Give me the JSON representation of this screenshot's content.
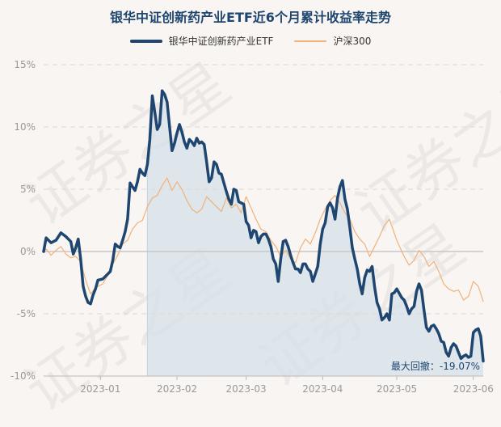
{
  "title": "银华中证创新药产业ETF近6个月累计收益率走势",
  "watermark": "证券之星",
  "legend": [
    {
      "name": "银华中证创新药产业ETF",
      "color": "#1e4670"
    },
    {
      "name": "沪深300",
      "color": "#f0b27a"
    }
  ],
  "annotation": "最大回撤：-19.07%",
  "chart_data": {
    "type": "line",
    "title": "银华中证创新药产业ETF近6个月累计收益率走势",
    "xlabel": "",
    "ylabel": "",
    "ylim": [
      -10,
      15
    ],
    "y_ticks": [
      "15%",
      "10%",
      "5%",
      "0%",
      "-5%",
      "-10%"
    ],
    "y_tick_values": [
      15,
      10,
      5,
      0,
      -5,
      -10
    ],
    "x_range": [
      "2022-12-09",
      "2023-06-05"
    ],
    "x_ticks": [
      "2023-01",
      "2023-02",
      "2023-03",
      "2023-04",
      "2023-05",
      "2023-06"
    ],
    "x_tick_dates": [
      "2023-01-01",
      "2023-02-01",
      "2023-03-01",
      "2023-04-01",
      "2023-05-01",
      "2023-06-01"
    ],
    "grid": "horizontal-dashed",
    "legend_position": "top-center",
    "drawdown_shade": [
      "2023-01-20",
      "2023-06-05"
    ],
    "series": [
      {
        "name": "银华中证创新药产业ETF",
        "color": "#1e4670",
        "points": [
          [
            "2022-12-09",
            0
          ],
          [
            "2022-12-10",
            1.1
          ],
          [
            "2022-12-12",
            0.7
          ],
          [
            "2022-12-14",
            0.9
          ],
          [
            "2022-12-16",
            1.5
          ],
          [
            "2022-12-18",
            1.2
          ],
          [
            "2022-12-20",
            0.8
          ],
          [
            "2022-12-21",
            -0.2
          ],
          [
            "2022-12-22",
            0.3
          ],
          [
            "2022-12-23",
            1.0
          ],
          [
            "2022-12-24",
            -0.6
          ],
          [
            "2022-12-25",
            -2.8
          ],
          [
            "2022-12-26",
            -3.6
          ],
          [
            "2022-12-27",
            -4.1
          ],
          [
            "2022-12-28",
            -4.2
          ],
          [
            "2022-12-29",
            -3.5
          ],
          [
            "2022-12-30",
            -3.0
          ],
          [
            "2022-12-31",
            -2.3
          ],
          [
            "2023-01-02",
            -2.2
          ],
          [
            "2023-01-04",
            -1.8
          ],
          [
            "2023-01-05",
            -1.6
          ],
          [
            "2023-01-06",
            -0.7
          ],
          [
            "2023-01-07",
            0.6
          ],
          [
            "2023-01-08",
            0.4
          ],
          [
            "2023-01-09",
            0.3
          ],
          [
            "2023-01-10",
            0.9
          ],
          [
            "2023-01-11",
            1.6
          ],
          [
            "2023-01-12",
            2.6
          ],
          [
            "2023-01-13",
            5.5
          ],
          [
            "2023-01-14",
            5.2
          ],
          [
            "2023-01-15",
            4.9
          ],
          [
            "2023-01-16",
            5.6
          ],
          [
            "2023-01-17",
            6.6
          ],
          [
            "2023-01-18",
            6.3
          ],
          [
            "2023-01-19",
            6.1
          ],
          [
            "2023-01-20",
            7.0
          ],
          [
            "2023-01-21",
            9.0
          ],
          [
            "2023-01-22",
            12.5
          ],
          [
            "2023-01-23",
            11.2
          ],
          [
            "2023-01-24",
            9.8
          ],
          [
            "2023-01-25",
            10.2
          ],
          [
            "2023-01-26",
            12.9
          ],
          [
            "2023-01-27",
            12.6
          ],
          [
            "2023-01-28",
            12.0
          ],
          [
            "2023-01-29",
            10.0
          ],
          [
            "2023-01-30",
            8.1
          ],
          [
            "2023-01-31",
            8.7
          ],
          [
            "2023-02-01",
            9.5
          ],
          [
            "2023-02-02",
            10.2
          ],
          [
            "2023-02-03",
            9.6
          ],
          [
            "2023-02-04",
            8.8
          ],
          [
            "2023-02-05",
            8.3
          ],
          [
            "2023-02-06",
            9.0
          ],
          [
            "2023-02-07",
            8.8
          ],
          [
            "2023-02-08",
            8.5
          ],
          [
            "2023-02-09",
            9.1
          ],
          [
            "2023-02-10",
            8.7
          ],
          [
            "2023-02-11",
            8.8
          ],
          [
            "2023-02-12",
            8.6
          ],
          [
            "2023-02-13",
            7.2
          ],
          [
            "2023-02-14",
            5.6
          ],
          [
            "2023-02-15",
            5.9
          ],
          [
            "2023-02-16",
            7.2
          ],
          [
            "2023-02-17",
            7.0
          ],
          [
            "2023-02-18",
            6.3
          ],
          [
            "2023-02-19",
            6.2
          ],
          [
            "2023-02-20",
            5.5
          ],
          [
            "2023-02-21",
            4.8
          ],
          [
            "2023-02-22",
            4.2
          ],
          [
            "2023-02-23",
            3.8
          ],
          [
            "2023-02-24",
            5.0
          ],
          [
            "2023-02-25",
            4.9
          ],
          [
            "2023-02-26",
            4.0
          ],
          [
            "2023-02-27",
            3.9
          ],
          [
            "2023-02-28",
            3.8
          ],
          [
            "2023-03-01",
            2.4
          ],
          [
            "2023-03-02",
            2.1
          ],
          [
            "2023-03-03",
            1.1
          ],
          [
            "2023-03-04",
            1.7
          ],
          [
            "2023-03-05",
            1.6
          ],
          [
            "2023-03-06",
            0.7
          ],
          [
            "2023-03-07",
            1.2
          ],
          [
            "2023-03-08",
            1.4
          ],
          [
            "2023-03-09",
            1.4
          ],
          [
            "2023-03-10",
            1.0
          ],
          [
            "2023-03-11",
            0.4
          ],
          [
            "2023-03-12",
            -0.6
          ],
          [
            "2023-03-13",
            -1.0
          ],
          [
            "2023-03-14",
            -2.4
          ],
          [
            "2023-03-15",
            -0.6
          ],
          [
            "2023-03-16",
            0.8
          ],
          [
            "2023-03-17",
            0.9
          ],
          [
            "2023-03-18",
            0.4
          ],
          [
            "2023-03-19",
            -0.3
          ],
          [
            "2023-03-20",
            -0.9
          ],
          [
            "2023-03-21",
            -1.4
          ],
          [
            "2023-03-22",
            -1.4
          ],
          [
            "2023-03-23",
            -1.7
          ],
          [
            "2023-03-24",
            -1.0
          ],
          [
            "2023-03-25",
            -1.0
          ],
          [
            "2023-03-26",
            -1.4
          ],
          [
            "2023-03-27",
            -1.6
          ],
          [
            "2023-03-28",
            -2.4
          ],
          [
            "2023-03-29",
            -1.8
          ],
          [
            "2023-03-30",
            -1.2
          ],
          [
            "2023-03-31",
            0.6
          ],
          [
            "2023-04-01",
            1.8
          ],
          [
            "2023-04-02",
            2.3
          ],
          [
            "2023-04-03",
            3.6
          ],
          [
            "2023-04-04",
            3.9
          ],
          [
            "2023-04-05",
            3.5
          ],
          [
            "2023-04-06",
            2.6
          ],
          [
            "2023-04-07",
            4.3
          ],
          [
            "2023-04-08",
            5.2
          ],
          [
            "2023-04-09",
            5.7
          ],
          [
            "2023-04-10",
            4.2
          ],
          [
            "2023-04-11",
            3.4
          ],
          [
            "2023-04-12",
            1.9
          ],
          [
            "2023-04-13",
            0.3
          ],
          [
            "2023-04-14",
            -0.6
          ],
          [
            "2023-04-15",
            -1.4
          ],
          [
            "2023-04-16",
            -2.6
          ],
          [
            "2023-04-17",
            -3.4
          ],
          [
            "2023-04-18",
            -2.1
          ],
          [
            "2023-04-19",
            -1.5
          ],
          [
            "2023-04-20",
            -1.6
          ],
          [
            "2023-04-21",
            -1.2
          ],
          [
            "2023-04-22",
            -2.8
          ],
          [
            "2023-04-23",
            -4.1
          ],
          [
            "2023-04-24",
            -4.6
          ],
          [
            "2023-04-25",
            -5.5
          ],
          [
            "2023-04-26",
            -5.3
          ],
          [
            "2023-04-27",
            -5.0
          ],
          [
            "2023-04-28",
            -5.5
          ],
          [
            "2023-04-29",
            -3.4
          ],
          [
            "2023-04-30",
            -3.3
          ],
          [
            "2023-05-01",
            -3.0
          ],
          [
            "2023-05-03",
            -3.7
          ],
          [
            "2023-05-04",
            -3.9
          ],
          [
            "2023-05-05",
            -4.4
          ],
          [
            "2023-05-06",
            -5.0
          ],
          [
            "2023-05-07",
            -4.6
          ],
          [
            "2023-05-08",
            -4.4
          ],
          [
            "2023-05-09",
            -3.2
          ],
          [
            "2023-05-10",
            -2.6
          ],
          [
            "2023-05-11",
            -3.1
          ],
          [
            "2023-05-12",
            -4.7
          ],
          [
            "2023-05-13",
            -6.1
          ],
          [
            "2023-05-14",
            -6.4
          ],
          [
            "2023-05-15",
            -6.0
          ],
          [
            "2023-05-16",
            -5.9
          ],
          [
            "2023-05-17",
            -6.2
          ],
          [
            "2023-05-18",
            -6.6
          ],
          [
            "2023-05-19",
            -7.2
          ],
          [
            "2023-05-20",
            -7.3
          ],
          [
            "2023-05-21",
            -8.1
          ],
          [
            "2023-05-22",
            -8.4
          ],
          [
            "2023-05-23",
            -7.7
          ],
          [
            "2023-05-24",
            -7.4
          ],
          [
            "2023-05-25",
            -7.6
          ],
          [
            "2023-05-26",
            -8.1
          ],
          [
            "2023-05-27",
            -8.6
          ],
          [
            "2023-05-28",
            -8.4
          ],
          [
            "2023-05-29",
            -8.3
          ],
          [
            "2023-05-30",
            -8.5
          ],
          [
            "2023-05-31",
            -8.4
          ],
          [
            "2023-06-01",
            -6.5
          ],
          [
            "2023-06-02",
            -6.3
          ],
          [
            "2023-06-03",
            -6.2
          ],
          [
            "2023-06-04",
            -6.8
          ],
          [
            "2023-06-05",
            -8.8
          ]
        ]
      },
      {
        "name": "沪深300",
        "color": "#f0b27a",
        "points": [
          [
            "2022-12-09",
            0
          ],
          [
            "2022-12-10",
            0.2
          ],
          [
            "2022-12-12",
            -0.3
          ],
          [
            "2022-12-14",
            0.1
          ],
          [
            "2022-12-16",
            0.4
          ],
          [
            "2022-12-18",
            -0.2
          ],
          [
            "2022-12-20",
            -0.5
          ],
          [
            "2022-12-22",
            -0.4
          ],
          [
            "2022-12-24",
            -0.8
          ],
          [
            "2022-12-26",
            -2.3
          ],
          [
            "2022-12-28",
            -3.4
          ],
          [
            "2022-12-30",
            -2.9
          ],
          [
            "2023-01-02",
            -2.6
          ],
          [
            "2023-01-04",
            -1.9
          ],
          [
            "2023-01-06",
            -1.0
          ],
          [
            "2023-01-08",
            -0.3
          ],
          [
            "2023-01-10",
            0.6
          ],
          [
            "2023-01-12",
            0.9
          ],
          [
            "2023-01-14",
            1.8
          ],
          [
            "2023-01-16",
            2.3
          ],
          [
            "2023-01-18",
            2.5
          ],
          [
            "2023-01-20",
            3.6
          ],
          [
            "2023-01-22",
            4.3
          ],
          [
            "2023-01-24",
            4.5
          ],
          [
            "2023-01-26",
            5.3
          ],
          [
            "2023-01-28",
            5.9
          ],
          [
            "2023-01-30",
            4.9
          ],
          [
            "2023-02-01",
            5.6
          ],
          [
            "2023-02-03",
            5.0
          ],
          [
            "2023-02-05",
            4.1
          ],
          [
            "2023-02-07",
            3.4
          ],
          [
            "2023-02-09",
            3.1
          ],
          [
            "2023-02-11",
            3.4
          ],
          [
            "2023-02-13",
            4.4
          ],
          [
            "2023-02-15",
            4.0
          ],
          [
            "2023-02-17",
            3.6
          ],
          [
            "2023-02-19",
            3.2
          ],
          [
            "2023-02-21",
            4.3
          ],
          [
            "2023-02-23",
            3.5
          ],
          [
            "2023-02-25",
            3.8
          ],
          [
            "2023-02-27",
            3.1
          ],
          [
            "2023-03-01",
            4.4
          ],
          [
            "2023-03-03",
            3.5
          ],
          [
            "2023-03-05",
            2.6
          ],
          [
            "2023-03-07",
            1.8
          ],
          [
            "2023-03-09",
            1.6
          ],
          [
            "2023-03-11",
            0.9
          ],
          [
            "2023-03-13",
            0.4
          ],
          [
            "2023-03-15",
            -0.4
          ],
          [
            "2023-03-17",
            0.1
          ],
          [
            "2023-03-19",
            -0.6
          ],
          [
            "2023-03-21",
            -0.9
          ],
          [
            "2023-03-23",
            0.3
          ],
          [
            "2023-03-25",
            1.0
          ],
          [
            "2023-03-27",
            0.6
          ],
          [
            "2023-03-29",
            1.5
          ],
          [
            "2023-03-31",
            2.6
          ],
          [
            "2023-04-02",
            3.4
          ],
          [
            "2023-04-04",
            4.1
          ],
          [
            "2023-04-06",
            4.5
          ],
          [
            "2023-04-08",
            3.9
          ],
          [
            "2023-04-10",
            3.1
          ],
          [
            "2023-04-12",
            2.6
          ],
          [
            "2023-04-14",
            1.6
          ],
          [
            "2023-04-16",
            1.0
          ],
          [
            "2023-04-18",
            0.6
          ],
          [
            "2023-04-20",
            -0.4
          ],
          [
            "2023-04-22",
            0.4
          ],
          [
            "2023-04-24",
            1.2
          ],
          [
            "2023-04-26",
            2.1
          ],
          [
            "2023-04-28",
            2.6
          ],
          [
            "2023-05-01",
            0.9
          ],
          [
            "2023-05-04",
            -0.4
          ],
          [
            "2023-05-06",
            -1.1
          ],
          [
            "2023-05-08",
            -0.7
          ],
          [
            "2023-05-10",
            0.1
          ],
          [
            "2023-05-12",
            -0.4
          ],
          [
            "2023-05-14",
            -1.2
          ],
          [
            "2023-05-16",
            -0.8
          ],
          [
            "2023-05-18",
            -1.6
          ],
          [
            "2023-05-20",
            -2.6
          ],
          [
            "2023-05-22",
            -3.0
          ],
          [
            "2023-05-24",
            -3.2
          ],
          [
            "2023-05-26",
            -3.1
          ],
          [
            "2023-05-28",
            -3.9
          ],
          [
            "2023-05-30",
            -3.6
          ],
          [
            "2023-06-01",
            -2.4
          ],
          [
            "2023-06-03",
            -2.8
          ],
          [
            "2023-06-05",
            -4.0
          ]
        ]
      }
    ]
  }
}
